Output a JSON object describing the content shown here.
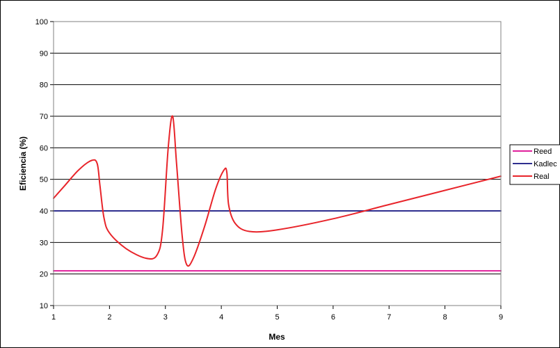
{
  "chart_data": {
    "type": "line",
    "title": "",
    "xlabel": "Mes",
    "ylabel": "Eficiencia (%)",
    "xlim": [
      1,
      9
    ],
    "ylim": [
      10,
      100
    ],
    "x_ticks": [
      1,
      2,
      3,
      4,
      5,
      6,
      7,
      8,
      9
    ],
    "y_ticks": [
      10,
      20,
      30,
      40,
      50,
      60,
      70,
      80,
      90,
      100
    ],
    "grid": "horizontal",
    "legend_position": "right",
    "series": [
      {
        "name": "Reed",
        "color": "#e0209c",
        "x": [
          1,
          9
        ],
        "y": [
          21,
          21
        ]
      },
      {
        "name": "Kadlec",
        "color": "#2e2e8f",
        "x": [
          1,
          9
        ],
        "y": [
          40,
          40
        ]
      },
      {
        "name": "Real",
        "color": "#e8242a",
        "x": [
          1,
          1.2,
          1.45,
          1.68,
          1.78,
          1.83,
          1.9,
          2.0,
          2.3,
          2.65,
          2.85,
          2.95,
          3.05,
          3.13,
          3.2,
          3.3,
          3.38,
          3.5,
          3.7,
          3.9,
          4.05,
          4.1,
          4.13,
          4.25,
          4.5,
          5.0,
          6.0,
          7.0,
          8.0,
          9.0
        ],
        "y": [
          44,
          48,
          53,
          56,
          55,
          48,
          38,
          33,
          28,
          25,
          26,
          34,
          60,
          70,
          55,
          32,
          23,
          25,
          35,
          47,
          53,
          52,
          42,
          36,
          33.5,
          34,
          37.5,
          42,
          46.5,
          51
        ]
      }
    ]
  }
}
